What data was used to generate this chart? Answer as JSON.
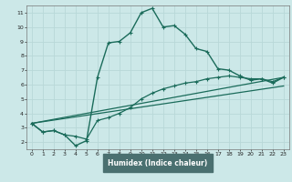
{
  "xlabel": "Humidex (Indice chaleur)",
  "bg_color": "#cce8e8",
  "grid_color": "#b8d8d8",
  "line_color": "#1a6b5a",
  "axis_bar_color": "#4a7070",
  "xlim": [
    -0.5,
    23.5
  ],
  "ylim": [
    1.5,
    11.5
  ],
  "xticks": [
    0,
    1,
    2,
    3,
    4,
    5,
    6,
    7,
    8,
    9,
    10,
    11,
    12,
    13,
    14,
    15,
    16,
    17,
    18,
    19,
    20,
    21,
    22,
    23
  ],
  "yticks": [
    2,
    3,
    4,
    5,
    6,
    7,
    8,
    9,
    10,
    11
  ],
  "series": [
    {
      "x": [
        0,
        1,
        2,
        3,
        4,
        5,
        6,
        7,
        8,
        9,
        10,
        11,
        12,
        13,
        14,
        15,
        16,
        17,
        18,
        19,
        20,
        21,
        22,
        23
      ],
      "y": [
        3.3,
        2.7,
        2.8,
        2.5,
        1.75,
        2.1,
        6.5,
        8.9,
        9.0,
        9.6,
        11.0,
        11.3,
        10.0,
        10.1,
        9.5,
        8.5,
        8.3,
        7.1,
        7.0,
        6.6,
        6.3,
        6.4,
        6.1,
        6.5
      ],
      "marker": "+",
      "lw": 1.0,
      "ms": 3.0
    },
    {
      "x": [
        0,
        23
      ],
      "y": [
        3.3,
        6.5
      ],
      "marker": null,
      "lw": 0.9,
      "ms": 0
    },
    {
      "x": [
        0,
        23
      ],
      "y": [
        3.3,
        5.9
      ],
      "marker": null,
      "lw": 0.9,
      "ms": 0
    },
    {
      "x": [
        0,
        1,
        2,
        3,
        4,
        5,
        6,
        7,
        8,
        9,
        10,
        11,
        12,
        13,
        14,
        15,
        16,
        17,
        18,
        19,
        20,
        21,
        22,
        23
      ],
      "y": [
        3.3,
        2.7,
        2.8,
        2.5,
        2.4,
        2.2,
        3.5,
        3.7,
        4.0,
        4.4,
        5.0,
        5.4,
        5.7,
        5.9,
        6.1,
        6.2,
        6.4,
        6.5,
        6.6,
        6.5,
        6.4,
        6.4,
        6.2,
        6.5
      ],
      "marker": "+",
      "lw": 0.9,
      "ms": 3.0
    }
  ]
}
